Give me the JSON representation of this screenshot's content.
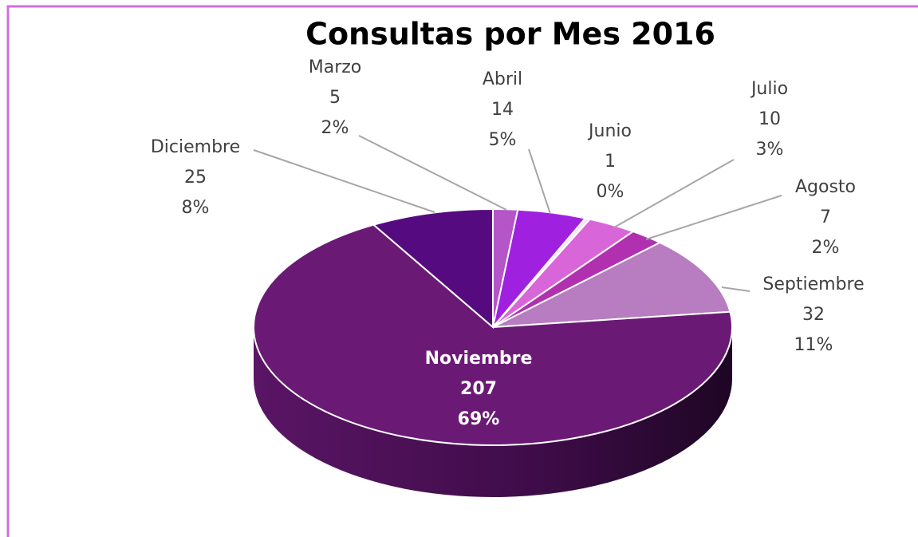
{
  "chart_data": {
    "type": "pie",
    "title": "Consultas por Mes 2016",
    "categories": [
      "Marzo",
      "Abril",
      "Junio",
      "Julio",
      "Agosto",
      "Septiembre",
      "Noviembre",
      "Diciembre"
    ],
    "values": [
      5,
      14,
      1,
      10,
      7,
      32,
      207,
      25
    ],
    "percent_labels": [
      "2%",
      "5%",
      "0%",
      "3%",
      "2%",
      "11%",
      "69%",
      "8%"
    ],
    "colors": [
      "#b455c8",
      "#a020e0",
      "#f2e6f5",
      "#d966d9",
      "#b030b0",
      "#b87cc0",
      "#6a1a75",
      "#560a80"
    ]
  }
}
